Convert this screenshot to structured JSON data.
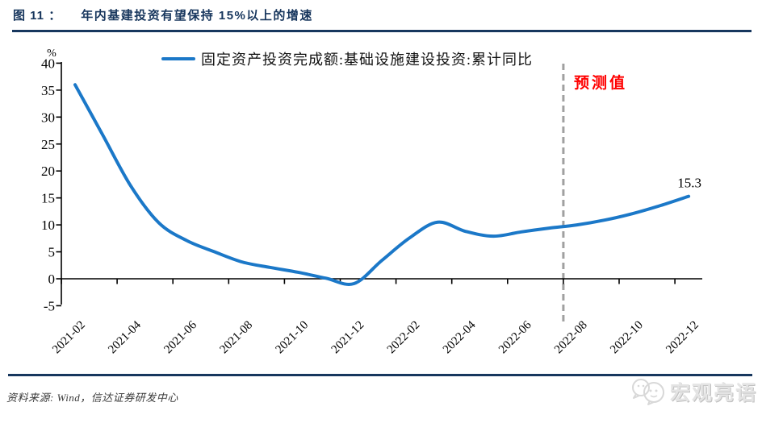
{
  "header": {
    "figure_label": "图 11 ：",
    "title": "年内基建投资有望保持 15%以上的增速"
  },
  "legend": {
    "series_label": "固定资产投资完成额:基础设施建设投资:累计同比"
  },
  "annotations": {
    "forecast_label": "预测值",
    "end_value_label": "15.3"
  },
  "footer": {
    "source": "资料来源: Wind，信达证券研发中心",
    "watermark": "宏观亮语",
    "watermark_icon": "chat-bubbles-icon"
  },
  "colors": {
    "line": "#1B78C8",
    "navy": "#17375E",
    "forecast_red": "#FF0000",
    "dashed_gray": "#A0A0A0",
    "axis_black": "#000000",
    "watermark_gray": "#E4E4E4"
  },
  "chart_data": {
    "type": "line",
    "title": "年内基建投资有望保持15%以上的增速",
    "series_name": "固定资产投资完成额:基础设施建设投资:累计同比",
    "unit_label": "%",
    "x": [
      "2021-02",
      "2021-03",
      "2021-04",
      "2021-05",
      "2021-06",
      "2021-07",
      "2021-08",
      "2021-09",
      "2021-10",
      "2021-11",
      "2021-12",
      "2022-01",
      "2022-02",
      "2022-03",
      "2022-04",
      "2022-05",
      "2022-06",
      "2022-07",
      "2022-08",
      "2022-09",
      "2022-10",
      "2022-11",
      "2022-12"
    ],
    "values": [
      36.0,
      26.6,
      17.2,
      10.4,
      7.1,
      5.0,
      3.1,
      2.1,
      1.2,
      0.1,
      -0.9,
      3.4,
      7.6,
      10.5,
      8.8,
      7.9,
      8.7,
      9.4,
      10.0,
      10.9,
      12.1,
      13.6,
      15.3
    ],
    "x_tick_labels": [
      "2021-02",
      "2021-04",
      "2021-06",
      "2021-08",
      "2021-10",
      "2021-12",
      "2022-02",
      "2022-04",
      "2022-06",
      "2022-08",
      "2022-10",
      "2022-12"
    ],
    "y_ticks": [
      40,
      35,
      30,
      25,
      20,
      15,
      10,
      5,
      0,
      -5
    ],
    "ylim": [
      -5,
      40
    ],
    "grid": false,
    "legend_position": "top-center",
    "forecast_boundary": "2022-08",
    "last_point_label": "15.3"
  }
}
